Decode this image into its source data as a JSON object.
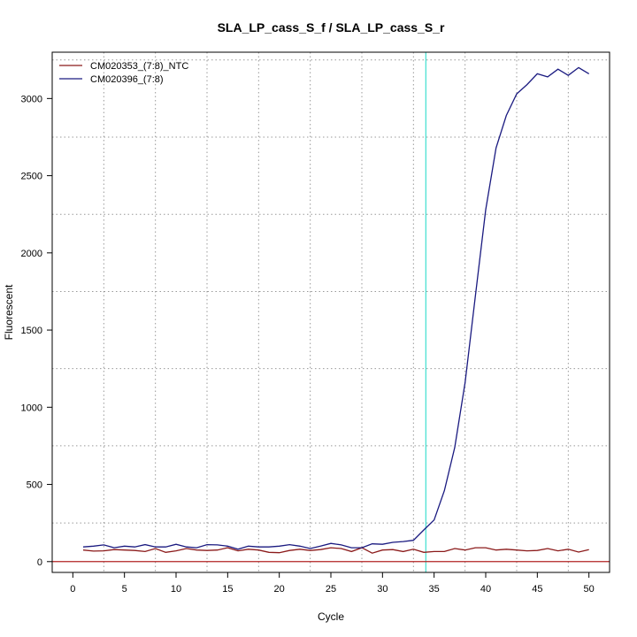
{
  "chart_data": {
    "type": "line",
    "title": "SLA_LP_cass_S_f / SLA_LP_cass_S_r",
    "xlabel": "Cycle",
    "ylabel": "Fluorescent",
    "xlim": [
      -2,
      52
    ],
    "ylim": [
      -70,
      3300
    ],
    "x_ticks": [
      0,
      5,
      10,
      15,
      20,
      25,
      30,
      35,
      40,
      45,
      50
    ],
    "x_tick_labels": [
      "0",
      "5",
      "10",
      "15",
      "20",
      "25",
      "30",
      "35",
      "40",
      "45",
      "50"
    ],
    "y_ticks": [
      0,
      500,
      1000,
      1500,
      2000,
      2500,
      3000
    ],
    "y_tick_labels": [
      "0",
      "500",
      "1000",
      "1500",
      "2000",
      "2500",
      "3000"
    ],
    "x_grid": [
      3,
      8,
      13,
      18,
      23,
      28,
      33,
      38,
      43,
      48
    ],
    "y_grid": [
      250,
      750,
      1250,
      1750,
      2250,
      2750,
      3250
    ],
    "grid": true,
    "legend_position": "top-left",
    "threshold_cycle": 34.2,
    "threshold_color": "#40e0d0",
    "baseline_value": 0,
    "baseline_color": "#b22222",
    "series": [
      {
        "name": "CM020353_(7:8)_NTC",
        "color": "#8b1a1a",
        "x": [
          1,
          2,
          3,
          4,
          5,
          6,
          7,
          8,
          9,
          10,
          11,
          12,
          13,
          14,
          15,
          16,
          17,
          18,
          19,
          20,
          21,
          22,
          23,
          24,
          25,
          26,
          27,
          28,
          29,
          30,
          31,
          32,
          33,
          34,
          35,
          36,
          37,
          38,
          39,
          40,
          41,
          42,
          43,
          44,
          45,
          46,
          47,
          48,
          49,
          50
        ],
        "values": [
          75,
          68,
          70,
          78,
          75,
          72,
          65,
          85,
          60,
          70,
          85,
          75,
          72,
          75,
          90,
          70,
          80,
          75,
          60,
          58,
          72,
          80,
          72,
          78,
          90,
          85,
          65,
          90,
          55,
          75,
          78,
          65,
          80,
          60,
          65,
          65,
          85,
          75,
          90,
          90,
          75,
          80,
          75,
          70,
          72,
          85,
          70,
          80,
          62,
          78
        ]
      },
      {
        "name": "CM020396_(7:8)",
        "color": "#1a1a80",
        "x": [
          1,
          2,
          3,
          4,
          5,
          6,
          7,
          8,
          9,
          10,
          11,
          12,
          13,
          14,
          15,
          16,
          17,
          18,
          19,
          20,
          21,
          22,
          23,
          24,
          25,
          26,
          27,
          28,
          29,
          30,
          31,
          32,
          33,
          34,
          35,
          36,
          37,
          38,
          39,
          40,
          41,
          42,
          43,
          44,
          45,
          46,
          47,
          48,
          49,
          50
        ],
        "values": [
          95,
          100,
          108,
          90,
          100,
          95,
          110,
          95,
          95,
          112,
          95,
          90,
          110,
          108,
          100,
          80,
          100,
          95,
          95,
          100,
          110,
          100,
          85,
          100,
          118,
          108,
          90,
          90,
          115,
          112,
          125,
          130,
          138,
          205,
          270,
          460,
          740,
          1160,
          1720,
          2280,
          2680,
          2890,
          3030,
          3090,
          3160,
          3140,
          3190,
          3150,
          3200,
          3160
        ]
      }
    ]
  }
}
